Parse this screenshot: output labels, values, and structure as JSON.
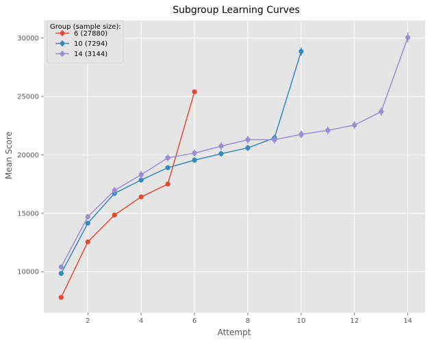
{
  "chart_data": {
    "type": "line",
    "title": "Subgroup Learning Curves",
    "xlabel": "Attempt",
    "ylabel": "Mean Score",
    "xlim": [
      0.35,
      14.65
    ],
    "ylim": [
      6500,
      31500
    ],
    "xticks": [
      2,
      4,
      6,
      8,
      10,
      12,
      14
    ],
    "yticks": [
      10000,
      15000,
      20000,
      25000,
      30000
    ],
    "grid": true,
    "legend_title": "Group (sample size):",
    "legend_position": "top-left",
    "series": [
      {
        "name": "6 (27880)",
        "color": "#E24A33",
        "x": [
          1,
          2,
          3,
          4,
          5,
          6
        ],
        "y": [
          7800,
          12550,
          14850,
          16400,
          17500,
          25400
        ],
        "err": [
          60,
          80,
          90,
          110,
          130,
          160
        ]
      },
      {
        "name": "10 (7294)",
        "color": "#348ABD",
        "x": [
          1,
          2,
          3,
          4,
          5,
          6,
          7,
          8,
          9,
          10
        ],
        "y": [
          9850,
          14150,
          16700,
          17850,
          18900,
          19550,
          20100,
          20600,
          21450,
          28850
        ],
        "err": [
          150,
          170,
          220,
          220,
          200,
          230,
          250,
          260,
          280,
          350
        ]
      },
      {
        "name": "14 (3144)",
        "color": "#988ED5",
        "x": [
          1,
          2,
          3,
          4,
          5,
          6,
          7,
          8,
          9,
          10,
          11,
          12,
          13,
          14
        ],
        "y": [
          10400,
          14700,
          16950,
          18300,
          19750,
          20150,
          20750,
          21300,
          21300,
          21750,
          22100,
          22550,
          23700,
          30050
        ],
        "err": [
          230,
          250,
          300,
          320,
          300,
          300,
          330,
          330,
          330,
          320,
          330,
          330,
          350,
          420
        ]
      }
    ]
  }
}
